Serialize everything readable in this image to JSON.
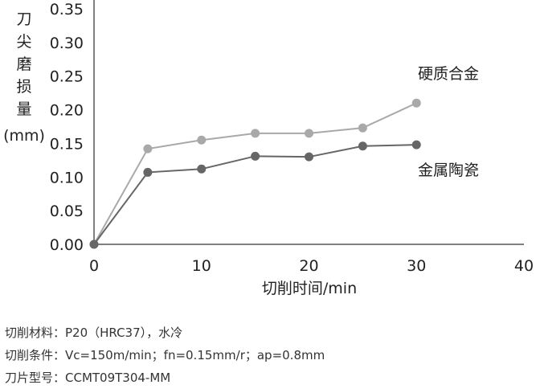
{
  "chart_data": {
    "type": "line",
    "ylabel": "刀尖磨损量(mm)",
    "xlabel": "切削时间/min",
    "xlim": [
      0,
      40
    ],
    "ylim": [
      0,
      0.35
    ],
    "xticks": [
      "0",
      "10",
      "20",
      "30",
      "40"
    ],
    "yticks": [
      "0.00",
      "0.05",
      "0.10",
      "0.15",
      "0.20",
      "0.25",
      "0.30",
      "0.35"
    ],
    "grid": false,
    "legend": "inline labels",
    "series": [
      {
        "name": "硬质合金",
        "color": "#a9a9a9",
        "x": [
          0,
          5,
          10,
          15,
          20,
          25,
          30
        ],
        "y": [
          0.0,
          0.142,
          0.155,
          0.165,
          0.165,
          0.173,
          0.21
        ]
      },
      {
        "name": "金属陶瓷",
        "color": "#666666",
        "x": [
          0,
          5,
          10,
          15,
          20,
          25,
          30
        ],
        "y": [
          0.0,
          0.107,
          0.112,
          0.131,
          0.13,
          0.146,
          0.148
        ]
      }
    ]
  },
  "notes": {
    "material": "切削材料：P20（HRC37），水冷",
    "conditions": "切削条件：Vc=150m/min；fn=0.15mm/r；ap=0.8mm",
    "insert": "刀片型号：CCMT09T304-MM"
  }
}
